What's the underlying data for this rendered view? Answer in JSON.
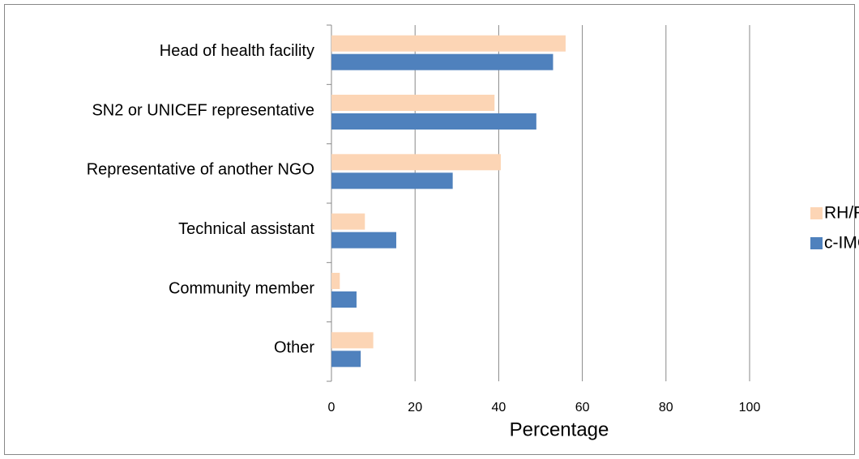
{
  "chart_data": {
    "type": "hbar",
    "categories": [
      "Head of health facility",
      "SN2 or UNICEF representative",
      "Representative of another NGO",
      "Technical assistant",
      "Community member",
      "Other"
    ],
    "series": [
      {
        "name": "RH/FP",
        "color": "#fcd5b5",
        "values": [
          56,
          39,
          40.5,
          8,
          2,
          10
        ]
      },
      {
        "name": "c-IMCI",
        "color": "#4f81bd",
        "values": [
          53,
          49,
          29,
          15.5,
          6,
          7
        ]
      }
    ],
    "xlabel": "Percentage",
    "xlim": [
      0,
      100
    ],
    "xticks": [
      0,
      20,
      40,
      60,
      80,
      100
    ],
    "grid": true,
    "legend": "right"
  }
}
